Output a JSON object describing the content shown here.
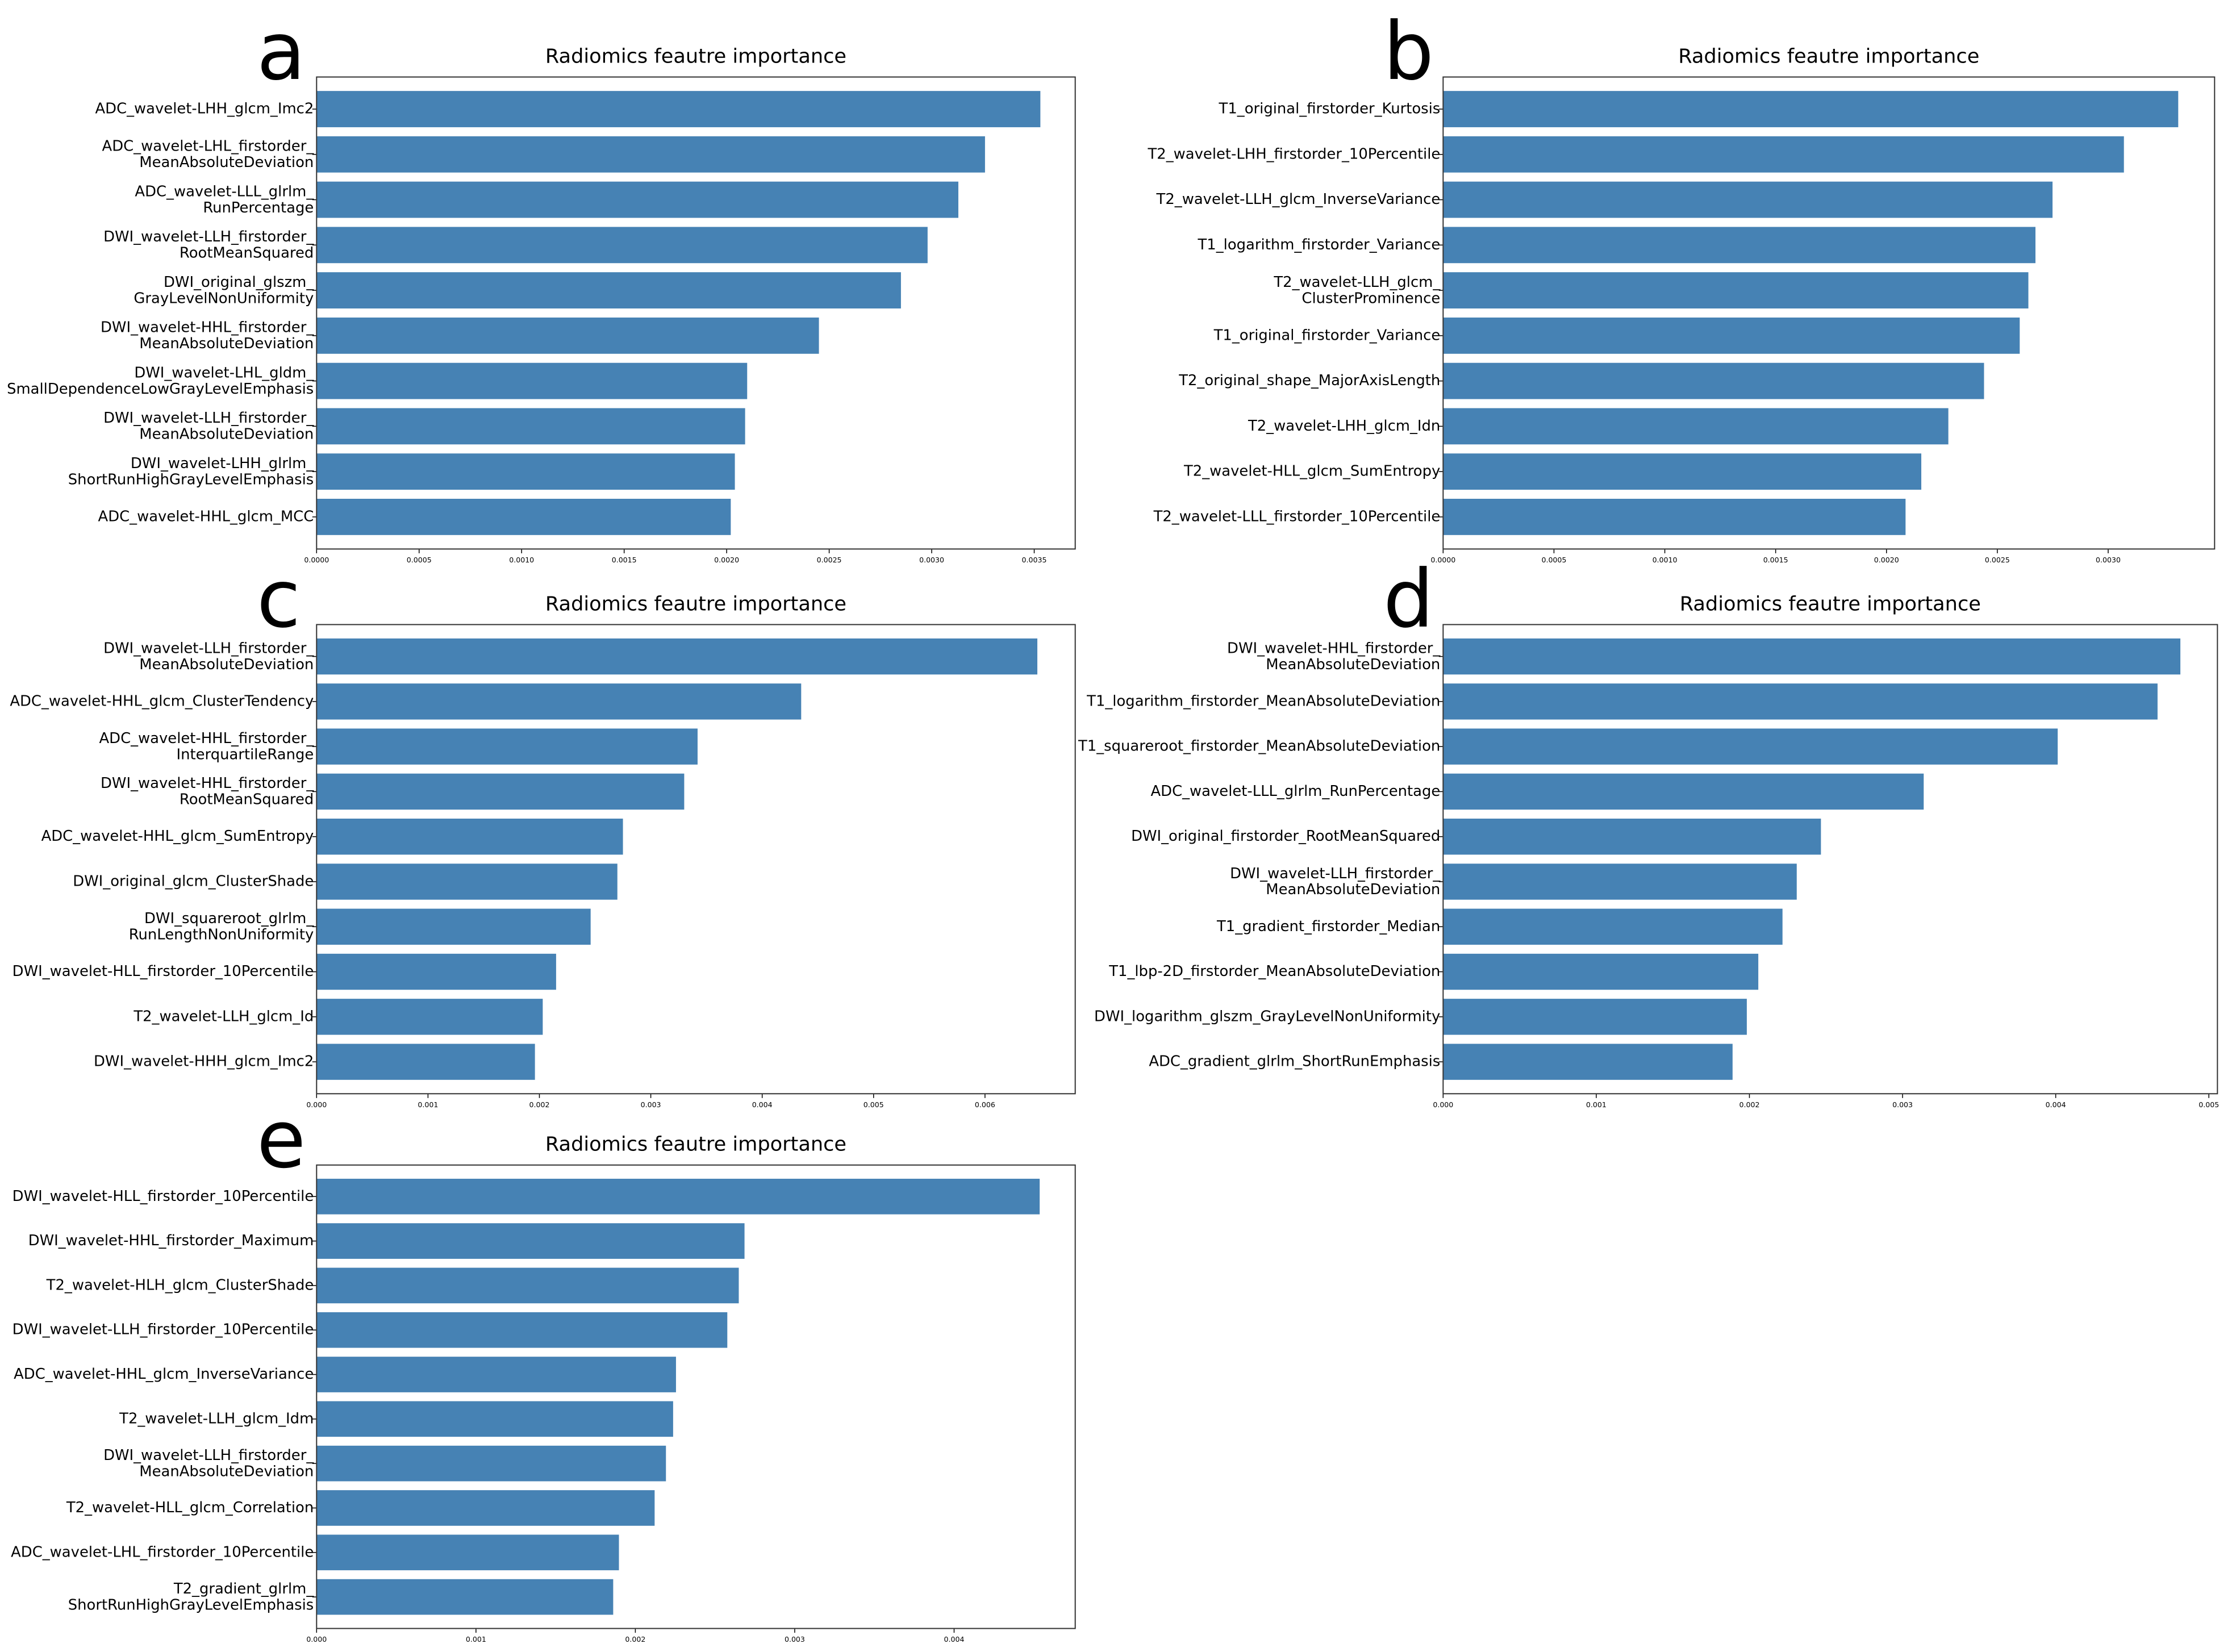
{
  "chart_data": [
    {
      "type": "bar",
      "orientation": "horizontal",
      "panel": "a",
      "title": "Radiomics feautre importance",
      "color": "#4682b4",
      "categories": [
        "ADC_wavelet-LHH_glcm_Imc2",
        "ADC_wavelet-LHL_firstorder_\nMeanAbsoluteDeviation",
        "ADC_wavelet-LLL_glrlm_\nRunPercentage",
        "DWI_wavelet-LLH_firstorder_\nRootMeanSquared",
        "DWI_original_glszm_\nGrayLevelNonUniformity",
        "DWI_wavelet-HHL_firstorder_\nMeanAbsoluteDeviation",
        "DWI_wavelet-LHL_gldm_\nSmallDependenceLowGrayLevelEmphasis",
        "DWI_wavelet-LLH_firstorder_\nMeanAbsoluteDeviation",
        "DWI_wavelet-LHH_glrlm_\nShortRunHighGrayLevelEmphasis",
        "ADC_wavelet-HHL_glcm_MCC"
      ],
      "values": [
        0.00353,
        0.00326,
        0.00313,
        0.00298,
        0.00285,
        0.00245,
        0.0021,
        0.00209,
        0.00204,
        0.00202
      ],
      "xlim": [
        0,
        0.0037
      ],
      "xticks": [
        {
          "value": 0,
          "label": "0.0000"
        },
        {
          "value": 0.0005,
          "label": "0.0005"
        },
        {
          "value": 0.001,
          "label": "0.0010"
        },
        {
          "value": 0.0015,
          "label": "0.0015"
        },
        {
          "value": 0.002,
          "label": "0.0020"
        },
        {
          "value": 0.0025,
          "label": "0.0025"
        },
        {
          "value": 0.003,
          "label": "0.0030"
        },
        {
          "value": 0.0035,
          "label": "0.0035"
        }
      ]
    },
    {
      "type": "bar",
      "orientation": "horizontal",
      "panel": "b",
      "title": "Radiomics feautre importance",
      "color": "#4682b4",
      "categories": [
        "T1_original_firstorder_Kurtosis",
        "T2_wavelet-LHH_firstorder_10Percentile",
        "T2_wavelet-LLH_glcm_InverseVariance",
        "T1_logarithm_firstorder_Variance",
        "T2_wavelet-LLH_glcm_\nClusterProminence",
        "T1_original_firstorder_Variance",
        "T2_original_shape_MajorAxisLength",
        "T2_wavelet-LHH_glcm_Idn",
        "T2_wavelet-HLL_glcm_SumEntropy",
        "T2_wavelet-LLL_firstorder_10Percentile"
      ],
      "values": [
        0.003316,
        0.003071,
        0.002749,
        0.002672,
        0.00264,
        0.002601,
        0.00244,
        0.002279,
        0.002157,
        0.002086
      ],
      "xlim": [
        0,
        0.00348
      ],
      "xticks": [
        {
          "value": 0,
          "label": "0.0000"
        },
        {
          "value": 0.0005,
          "label": "0.0005"
        },
        {
          "value": 0.001,
          "label": "0.0010"
        },
        {
          "value": 0.0015,
          "label": "0.0015"
        },
        {
          "value": 0.002,
          "label": "0.0020"
        },
        {
          "value": 0.0025,
          "label": "0.0025"
        },
        {
          "value": 0.003,
          "label": "0.0030"
        }
      ]
    },
    {
      "type": "bar",
      "orientation": "horizontal",
      "panel": "c",
      "title": "Radiomics feautre importance",
      "color": "#4682b4",
      "categories": [
        "DWI_wavelet-LLH_firstorder_\nMeanAbsoluteDeviation",
        "ADC_wavelet-HHL_glcm_ClusterTendency",
        "ADC_wavelet-HHL_firstorder_\nInterquartileRange",
        "DWI_wavelet-HHL_firstorder_\nRootMeanSquared",
        "ADC_wavelet-HHL_glcm_SumEntropy",
        "DWI_original_glcm_ClusterShade",
        "DWI_squareroot_glrlm_\nRunLengthNonUniformity",
        "DWI_wavelet-HLL_firstorder_10Percentile",
        "T2_wavelet-LLH_glcm_Id",
        "DWI_wavelet-HHH_glcm_Imc2"
      ],
      "values": [
        0.00647,
        0.00435,
        0.00342,
        0.0033,
        0.00275,
        0.0027,
        0.00246,
        0.00215,
        0.00203,
        0.00196
      ],
      "xlim": [
        0,
        0.00681
      ],
      "xticks": [
        {
          "value": 0,
          "label": "0.000"
        },
        {
          "value": 0.001,
          "label": "0.001"
        },
        {
          "value": 0.002,
          "label": "0.002"
        },
        {
          "value": 0.003,
          "label": "0.003"
        },
        {
          "value": 0.004,
          "label": "0.004"
        },
        {
          "value": 0.005,
          "label": "0.005"
        },
        {
          "value": 0.006,
          "label": "0.006"
        }
      ]
    },
    {
      "type": "bar",
      "orientation": "horizontal",
      "panel": "d",
      "title": "Radiomics feautre importance",
      "color": "#4682b4",
      "categories": [
        "DWI_wavelet-HHL_firstorder_\nMeanAbsoluteDeviation",
        "T1_logarithm_firstorder_MeanAbsoluteDeviation",
        "T1_squareroot_firstorder_MeanAbsoluteDeviation",
        "ADC_wavelet-LLL_glrlm_RunPercentage",
        "DWI_original_firstorder_RootMeanSquared",
        "DWI_wavelet-LLH_firstorder_\nMeanAbsoluteDeviation",
        "T1_gradient_firstorder_Median",
        "T1_lbp-2D_firstorder_MeanAbsoluteDeviation",
        "DWI_logarithm_glszm_GrayLevelNonUniformity",
        "ADC_gradient_glrlm_ShortRunEmphasis"
      ],
      "values": [
        0.004814,
        0.004665,
        0.004013,
        0.003138,
        0.002467,
        0.002309,
        0.002216,
        0.002058,
        0.001983,
        0.00189
      ],
      "xlim": [
        0,
        0.005056
      ],
      "xticks": [
        {
          "value": 0,
          "label": "0.000"
        },
        {
          "value": 0.001,
          "label": "0.001"
        },
        {
          "value": 0.002,
          "label": "0.002"
        },
        {
          "value": 0.003,
          "label": "0.003"
        },
        {
          "value": 0.004,
          "label": "0.004"
        },
        {
          "value": 0.005,
          "label": "0.005"
        }
      ]
    },
    {
      "type": "bar",
      "orientation": "horizontal",
      "panel": "e",
      "title": "Radiomics feautre importance",
      "color": "#4682b4",
      "categories": [
        "DWI_wavelet-HLL_firstorder_10Percentile",
        "DWI_wavelet-HHL_firstorder_Maximum",
        "T2_wavelet-HLH_glcm_ClusterShade",
        "DWI_wavelet-LLH_firstorder_10Percentile",
        "ADC_wavelet-HHL_glcm_InverseVariance",
        "T2_wavelet-LLH_glcm_Idm",
        "DWI_wavelet-LLH_firstorder_\nMeanAbsoluteDeviation",
        "T2_wavelet-HLL_glcm_Correlation",
        "ADC_wavelet-LHL_firstorder_10Percentile",
        "T2_gradient_glrlm_\nShortRunHighGrayLevelEmphasis"
      ],
      "values": [
        0.004537,
        0.002685,
        0.002649,
        0.002577,
        0.002255,
        0.002237,
        0.002192,
        0.002121,
        0.001897,
        0.001861
      ],
      "xlim": [
        0,
        0.00476
      ],
      "xticks": [
        {
          "value": 0,
          "label": "0.000"
        },
        {
          "value": 0.001,
          "label": "0.001"
        },
        {
          "value": 0.002,
          "label": "0.002"
        },
        {
          "value": 0.003,
          "label": "0.003"
        },
        {
          "value": 0.004,
          "label": "0.004"
        }
      ]
    }
  ]
}
